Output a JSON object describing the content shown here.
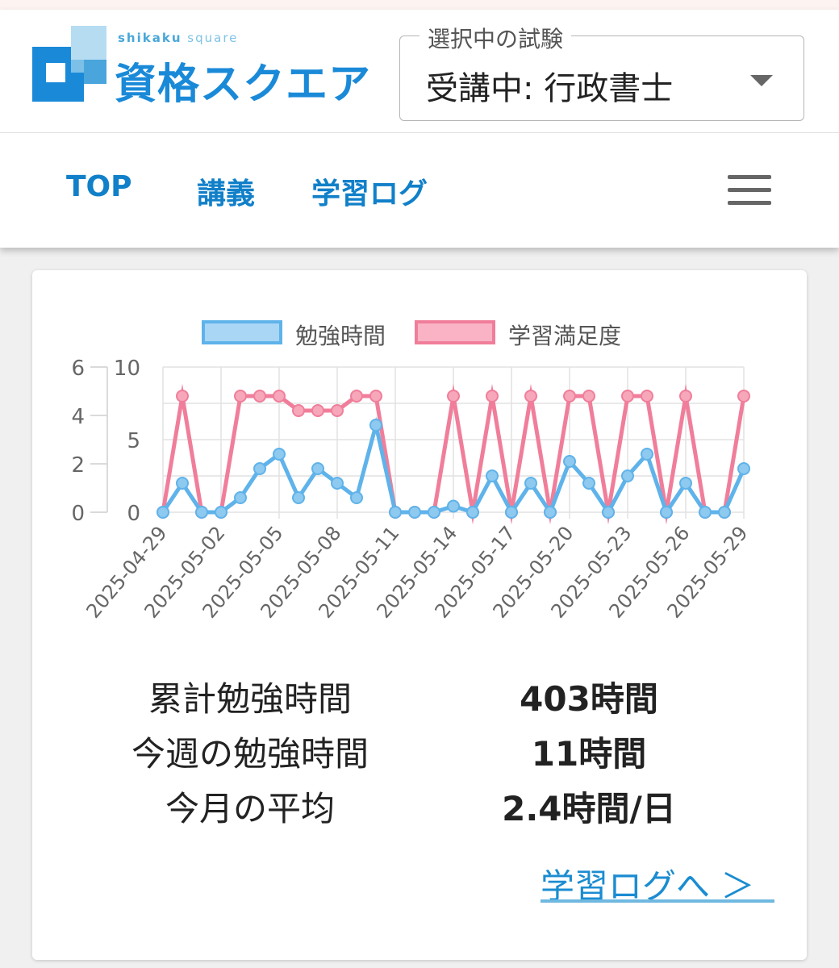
{
  "header": {
    "logo": {
      "subtitle_bold": "shikaku",
      "subtitle_light": "square",
      "title": "資格スクエア"
    },
    "exam_select": {
      "legend": "選択中の試験",
      "value": "受講中: 行政書士"
    }
  },
  "nav": {
    "items": [
      {
        "label": "TOP"
      },
      {
        "label": "講義"
      },
      {
        "label": "学習ログ"
      }
    ]
  },
  "colors": {
    "brand_blue": "#1a8ad8",
    "study_line": "#5fb3ea",
    "satisfaction_line": "#f07e9a"
  },
  "chart_data": {
    "type": "line",
    "x": [
      "2025-04-29",
      "2025-04-30",
      "2025-05-01",
      "2025-05-02",
      "2025-05-03",
      "2025-05-04",
      "2025-05-05",
      "2025-05-06",
      "2025-05-07",
      "2025-05-08",
      "2025-05-09",
      "2025-05-10",
      "2025-05-11",
      "2025-05-12",
      "2025-05-13",
      "2025-05-14",
      "2025-05-15",
      "2025-05-16",
      "2025-05-17",
      "2025-05-18",
      "2025-05-19",
      "2025-05-20",
      "2025-05-21",
      "2025-05-22",
      "2025-05-23",
      "2025-05-24",
      "2025-05-25",
      "2025-05-26",
      "2025-05-27",
      "2025-05-28",
      "2025-05-29"
    ],
    "x_tick_labels": [
      "2025-04-29",
      "2025-05-02",
      "2025-05-05",
      "2025-05-08",
      "2025-05-11",
      "2025-05-14",
      "2025-05-17",
      "2025-05-20",
      "2025-05-23",
      "2025-05-26",
      "2025-05-29"
    ],
    "series": [
      {
        "name": "勉強時間",
        "axis": "left",
        "values": [
          0,
          1.2,
          0,
          0,
          0.6,
          1.8,
          2.4,
          0.6,
          1.8,
          1.2,
          0.6,
          3.6,
          0,
          0,
          0,
          0.25,
          0,
          1.5,
          0,
          1.2,
          0,
          2.1,
          1.2,
          0,
          1.5,
          2.4,
          0,
          1.2,
          0,
          0,
          1.8
        ]
      },
      {
        "name": "学習満足度",
        "axis": "right",
        "values": [
          0,
          8,
          0,
          0,
          8,
          8,
          8,
          7,
          7,
          7,
          8,
          8,
          0,
          0,
          0,
          8,
          0,
          8,
          0,
          8,
          0,
          8,
          8,
          0,
          8,
          8,
          0,
          8,
          0,
          0,
          8
        ]
      }
    ],
    "y_left": {
      "ticks": [
        "0",
        "2",
        "4",
        "6"
      ],
      "range": [
        0,
        6
      ]
    },
    "y_right": {
      "ticks": [
        "0",
        "5",
        "10"
      ],
      "range": [
        0,
        10
      ]
    },
    "legend_position": "top",
    "grid": true
  },
  "stats": [
    {
      "label": "累計勉強時間",
      "value": "403時間"
    },
    {
      "label": "今週の勉強時間",
      "value": "11時間"
    },
    {
      "label": "今月の平均",
      "value": "2.4時間/日"
    }
  ],
  "study_log_link": "学習ログへ ＞"
}
